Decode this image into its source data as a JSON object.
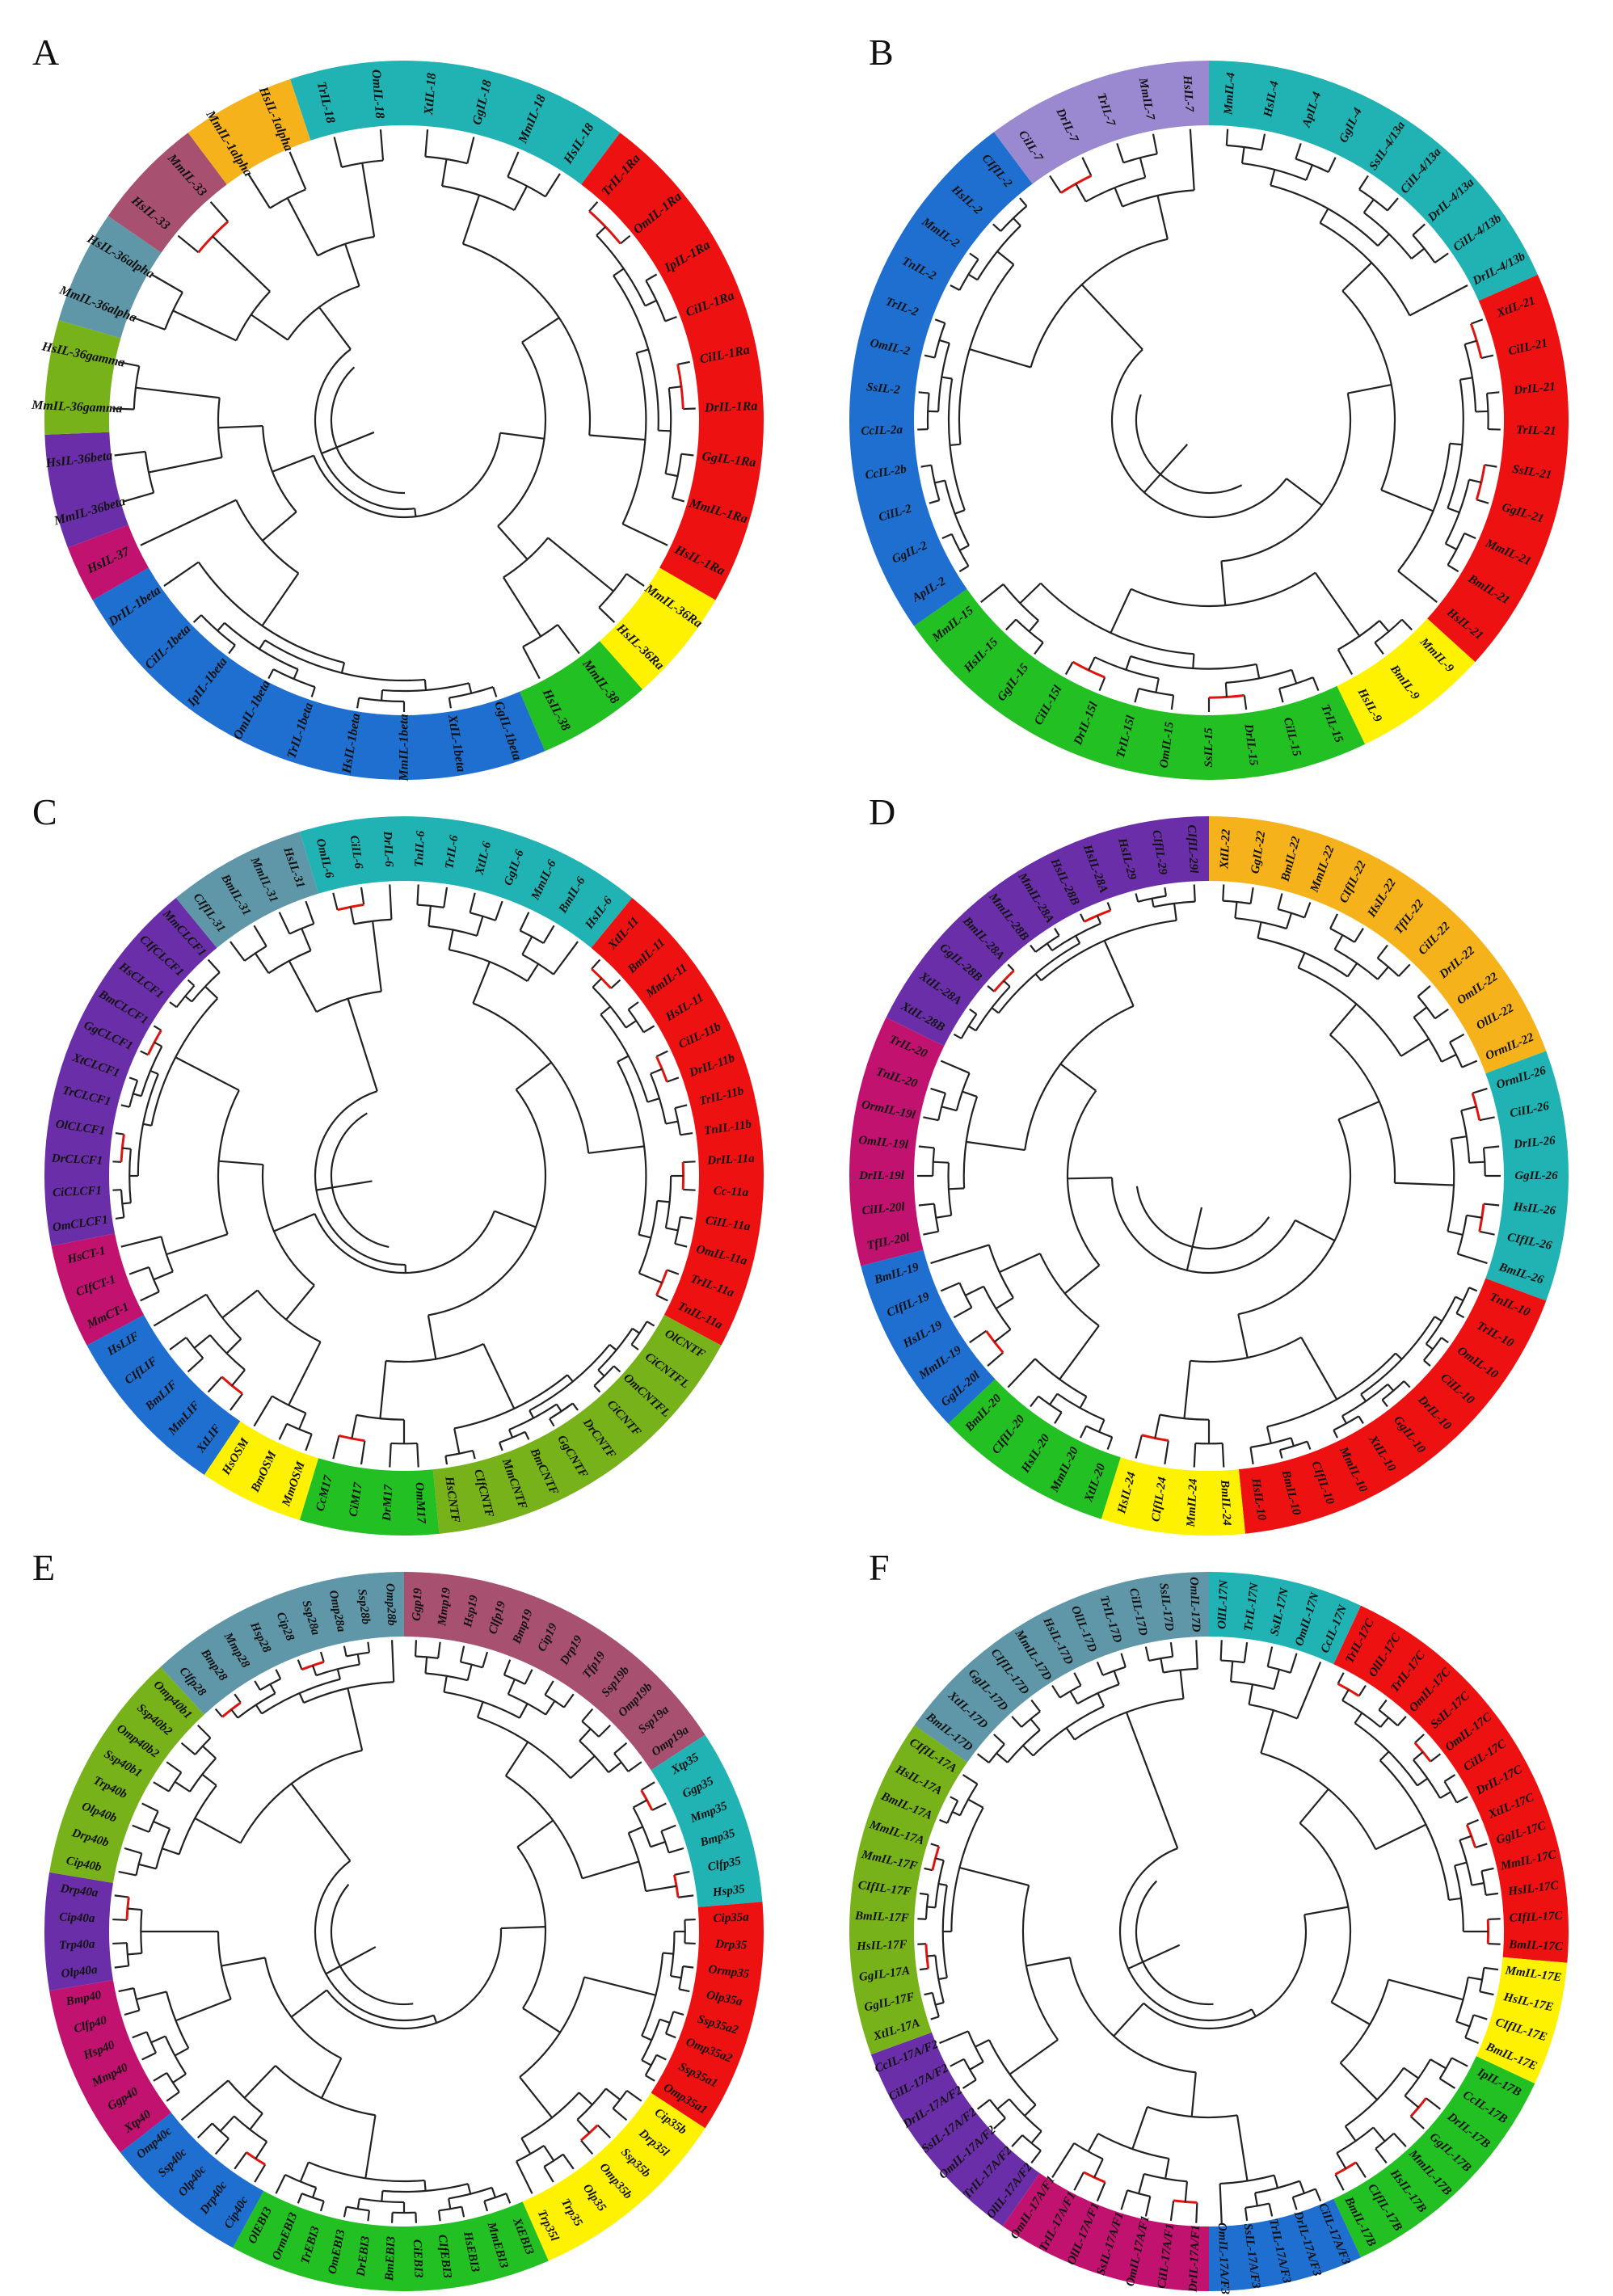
{
  "panels": [
    {
      "letter": "A",
      "groups": [
        {
          "color": "#21b3b3",
          "leaves": [
            "XtIL-18",
            "GgIL-18",
            "MmIL-18",
            "HsIL-18"
          ]
        },
        {
          "color": "#ee1111",
          "leaves": [
            "TrIL-1Ra",
            "OmIL-1Ra",
            "IpIL-1Ra",
            "CiIL-1Ra",
            "CiIL-1Ra",
            "DrIL-1Ra",
            "GgIL-1Ra",
            "MmIL-1Ra",
            "HsIL-1Ra"
          ]
        },
        {
          "color": "#fff200",
          "leaves": [
            "MmIL-36Ra",
            "HsIL-36Ra"
          ]
        },
        {
          "color": "#22c022",
          "leaves": [
            "MmIL-38",
            "HsIL-38"
          ]
        },
        {
          "color": "#1f6fd0",
          "leaves": [
            "GgIL-1beta",
            "XtIL-1beta",
            "MmIL-1beta",
            "HsIL-1beta",
            "TrIL-1beta",
            "OmIL-1beta",
            "IpIL-1beta",
            "CiIL-1beta",
            "DrIL-1beta"
          ]
        },
        {
          "color": "#c0126e",
          "leaves": [
            "HsIL-37"
          ]
        },
        {
          "color": "#6a2fa8",
          "leaves": [
            "MmIL-36beta",
            "HsIL-36beta"
          ]
        },
        {
          "color": "#78b21a",
          "leaves": [
            "MmIL-36gamma",
            "HsIL-36gamma"
          ]
        },
        {
          "color": "#5f97a8",
          "leaves": [
            "MmIL-36alpha",
            "HsIL-36alpha"
          ]
        },
        {
          "color": "#a8506f",
          "leaves": [
            "HsIL-33",
            "MmIL-33"
          ]
        },
        {
          "color": "#f5b21a",
          "leaves": [
            "MmIL-1alpha",
            "HsIL-1alpha"
          ]
        },
        {
          "color": "#21b3b3",
          "leaves": [
            "TrIL-18",
            "OmIL-18"
          ]
        }
      ]
    },
    {
      "letter": "B",
      "groups": [
        {
          "color": "#21b3b3",
          "leaves": [
            "MmIL-4",
            "HsIL-4",
            "ApIL-4",
            "GgIL-4",
            "SsIL-4/13a",
            "CiIL-4/13a",
            "DrIL-4/13a",
            "CiIL-4/13b",
            "DrIL-4/13b"
          ]
        },
        {
          "color": "#ee1111",
          "leaves": [
            "XtIL-21",
            "CiIL-21",
            "DrIL-21",
            "TrIL-21",
            "SsIL-21",
            "GgIL-21",
            "MmIL-21",
            "BmIL-21",
            "HsIL-21"
          ]
        },
        {
          "color": "#fff200",
          "leaves": [
            "MmIL-9",
            "BmIL-9",
            "HsIL-9"
          ]
        },
        {
          "color": "#22c022",
          "leaves": [
            "TrIL-15",
            "CiIL-15",
            "DrIL-15",
            "SsIL-15",
            "OmIL-15",
            "TrIL-15l",
            "DrIL-15l",
            "CiIL-15l",
            "GgIL-15",
            "HsIL-15",
            "MmIL-15"
          ]
        },
        {
          "color": "#1f6fd0",
          "leaves": [
            "ApIL-2",
            "GgIL-2",
            "CiIL-2",
            "CcIL-2b",
            "CcIL-2a",
            "SsIL-2",
            "OmIL-2",
            "TrIL-2",
            "TnIL-2",
            "MmIL-2",
            "HsIL-2",
            "CIfIL-2"
          ]
        },
        {
          "color": "#9a88d0",
          "leaves": [
            "CiIL-7",
            "DrIL-7",
            "TrIL-7",
            "MmIL-7",
            "HsIL-7"
          ]
        }
      ]
    },
    {
      "letter": "C",
      "groups": [
        {
          "color": "#21b3b3",
          "leaves": [
            "TnIL-6",
            "TrIL-6",
            "XtIL-6",
            "GgIL-6",
            "MmIL-6",
            "BmIL-6",
            "HsIL-6"
          ]
        },
        {
          "color": "#ee1111",
          "leaves": [
            "XtIL-11",
            "BmIL-11",
            "MmIL-11",
            "HsIL-11",
            "CiIL-11b",
            "DrIL-11b",
            "TrIL-11b",
            "TnIL-11b",
            "DrIL-11a",
            "Cc-11a",
            "CiIL-11a",
            "OmIL-11a",
            "TrIL-11a",
            "TnIL-11a"
          ]
        },
        {
          "color": "#78b21a",
          "leaves": [
            "OlCNTF",
            "CiCNTFL",
            "OmCNTFL",
            "CiCNTF",
            "DrCNTF",
            "GgCNTF",
            "BmCNTF",
            "MmCNTF",
            "CIfCNTF",
            "HsCNTF"
          ]
        },
        {
          "color": "#22c022",
          "leaves": [
            "OmM17",
            "DrM17",
            "CiM17",
            "CcM17"
          ]
        },
        {
          "color": "#fff200",
          "leaves": [
            "MmOSM",
            "BmOSM",
            "HsOSM"
          ]
        },
        {
          "color": "#1f6fd0",
          "leaves": [
            "XtLIF",
            "MmLIF",
            "BmLIF",
            "CIfLIF",
            "HsLIF"
          ]
        },
        {
          "color": "#c0126e",
          "leaves": [
            "MmCT-1",
            "CIfCT-1",
            "HsCT-1"
          ]
        },
        {
          "color": "#6a2fa8",
          "leaves": [
            "OmCLCF1",
            "CiCLCF1",
            "DrCLCF1",
            "OlCLCF1",
            "TrCLCF1",
            "XtCLCF1",
            "GgCLCF1",
            "BmCLCF1",
            "HsCLCF1",
            "CIfCLCF1",
            "MmCLCF1"
          ]
        },
        {
          "color": "#5f97a8",
          "leaves": [
            "CIfIL-31",
            "BmIL-31",
            "MmIL-31",
            "HsIL-31"
          ]
        },
        {
          "color": "#21b3b3",
          "leaves": [
            "OmIL-6",
            "CiIL-6",
            "DrIL-6"
          ]
        }
      ]
    },
    {
      "letter": "D",
      "groups": [
        {
          "color": "#f5b21a",
          "leaves": [
            "XtIL-22",
            "GgIL-22",
            "BmIL-22",
            "MmIL-22",
            "CIfIL-22",
            "HsIL-22",
            "TfIL-22",
            "CiIL-22",
            "DrIL-22",
            "OmIL-22",
            "OlIL-22",
            "OrmIL-22"
          ]
        },
        {
          "color": "#21b3b3",
          "leaves": [
            "OrmIL-26",
            "CiIL-26",
            "DrIL-26",
            "GgIL-26",
            "HsIL-26",
            "CIfIL-26",
            "BmIL-26"
          ]
        },
        {
          "color": "#ee1111",
          "leaves": [
            "TnIL-10",
            "TrIL-10",
            "OmIL-10",
            "CiIL-10",
            "DrIL-10",
            "GgIL-10",
            "XtIL-10",
            "MmIL-10",
            "CIfIL-10",
            "BmIL-10",
            "HsIL-10"
          ]
        },
        {
          "color": "#fff200",
          "leaves": [
            "BmIL-24",
            "MmIL-24",
            "CIfIL-24",
            "HsIL-24"
          ]
        },
        {
          "color": "#22c022",
          "leaves": [
            "XtIL-20",
            "MmIL-20",
            "HsIL-20",
            "CIfIL-20",
            "BmIL-20"
          ]
        },
        {
          "color": "#1f6fd0",
          "leaves": [
            "GgIL-20l",
            "MmIL-19",
            "HsIL-19",
            "CIfIL-19",
            "BmIL-19"
          ]
        },
        {
          "color": "#c0126e",
          "leaves": [
            "TfIL-20l",
            "CiIL-20l",
            "DrIL-19l",
            "OmIL-19l",
            "OrmIL-19l",
            "TnIL-20",
            "TrIL-20"
          ]
        },
        {
          "color": "#6a2fa8",
          "leaves": [
            "XtIL-28B",
            "XtIL-28A",
            "GgIL-28B",
            "BmIL-28A",
            "MmIL-28B",
            "MmIL-28A",
            "HsIL-28B",
            "HsIL-28A",
            "HsIL-29",
            "CIfIL-29",
            "CIfIL-29l"
          ]
        }
      ]
    },
    {
      "letter": "E",
      "groups": [
        {
          "color": "#a8506f",
          "leaves": [
            "Ggp19",
            "Mmp19",
            "Hsp19",
            "Clfp19",
            "Bmp19",
            "Cip19",
            "Drp19",
            "Tfp19",
            "Ssp19b",
            "Omp19b",
            "Ssp19a",
            "Omp19a"
          ]
        },
        {
          "color": "#21b3b3",
          "leaves": [
            "Xtp35",
            "Ggp35",
            "Mmp35",
            "Bmp35",
            "Clfp35",
            "Hsp35"
          ]
        },
        {
          "color": "#ee1111",
          "leaves": [
            "Cip35a",
            "Drp35",
            "Ormp35",
            "Olp35a",
            "Ssp35a2",
            "Omp35a2",
            "Ssp35a1",
            "Omp35a1"
          ]
        },
        {
          "color": "#fff200",
          "leaves": [
            "Cip35b",
            "Drp35l",
            "Ssp35b",
            "Omp35b",
            "Olp35",
            "Trp35",
            "Trp35l"
          ]
        },
        {
          "color": "#22c022",
          "leaves": [
            "XtEBI3",
            "MmEBI3",
            "HsEBI3",
            "CIfEBI3",
            "CiEBI3",
            "BmEBI3",
            "DrEBI3",
            "OmEBI3",
            "TrEBI3",
            "OrmEBI3",
            "OlEBI3"
          ]
        },
        {
          "color": "#1f6fd0",
          "leaves": [
            "Cip40c",
            "Drp40c",
            "Olp40c",
            "Ssp40c",
            "Omp40c"
          ]
        },
        {
          "color": "#c0126e",
          "leaves": [
            "Xtp40",
            "Ggp40",
            "Mmp40",
            "Hsp40",
            "Clfp40",
            "Bmp40"
          ]
        },
        {
          "color": "#6a2fa8",
          "leaves": [
            "Olp40a",
            "Trp40a",
            "Cip40a",
            "Drp40a"
          ]
        },
        {
          "color": "#78b21a",
          "leaves": [
            "Cip40b",
            "Drp40b",
            "Olp40b",
            "Trp40b",
            "Ssp40b1",
            "Omp40b2",
            "Ssp40b2",
            "Omp40b1"
          ]
        },
        {
          "color": "#5f97a8",
          "leaves": [
            "Clfp28",
            "Bmp28",
            "Mmp28",
            "Hsp28",
            "Cip28",
            "Ssp28a",
            "Omp28a",
            "Ssp28b",
            "Omp28b"
          ]
        }
      ]
    },
    {
      "letter": "F",
      "groups": [
        {
          "color": "#21b3b3",
          "leaves": [
            "OlIL-17N",
            "TrIL-17N",
            "SsIL-17N",
            "OmIL-17N",
            "CcIL-17N"
          ]
        },
        {
          "color": "#ee1111",
          "leaves": [
            "TrIL-17C",
            "OlIL-17C",
            "TrIL-17C",
            "OmIL-17C",
            "SsIL-17C",
            "OmIL-17C",
            "CiIL-17C",
            "DrIL-17C",
            "XtIL-17C",
            "GgIL-17C",
            "MmIL-17C",
            "HsIL-17C",
            "CIfIL-17C",
            "BmIL-17C"
          ]
        },
        {
          "color": "#fff200",
          "leaves": [
            "MmIL-17E",
            "HsIL-17E",
            "CIfIL-17E",
            "BmIL-17E"
          ]
        },
        {
          "color": "#22c022",
          "leaves": [
            "IpIL-17B",
            "CcIL-17B",
            "DrIL-17B",
            "GgIL-17B",
            "MmIL-17B",
            "HsIL-17B",
            "CIfIL-17B",
            "BmIL-17B"
          ]
        },
        {
          "color": "#1f6fd0",
          "leaves": [
            "CiIL-17A/F3",
            "DrIL-17A/F3",
            "TrIL-17A/F3",
            "SsIL-17A/F3",
            "OmIL-17A/F3"
          ]
        },
        {
          "color": "#c0126e",
          "leaves": [
            "DrIL-17A/F1",
            "CiIL-17A/F1",
            "OmIL-17A/F1",
            "SsIL-17A/F1",
            "OlIL-17A/F1",
            "TrIL-17A/F1",
            "OmIL-17A/F1"
          ]
        },
        {
          "color": "#6a2fa8",
          "leaves": [
            "OlIL-17A/F2",
            "TrIL-17A/F2",
            "OmIL-17A/F2",
            "SsIL-17A/F2",
            "DrIL-17A/F2",
            "CiIL-17A/F2",
            "CcIL-17A/F2"
          ]
        },
        {
          "color": "#78b21a",
          "leaves": [
            "XtIL-17A",
            "GgIL-17F",
            "GgIL-17A",
            "HsIL-17F",
            "BmIL-17F",
            "CIfIL-17F",
            "MmIL-17F",
            "MmIL-17A",
            "BmIL-17A",
            "HsIL-17A",
            "CIfIL-17A"
          ]
        },
        {
          "color": "#5f97a8",
          "leaves": [
            "BmIL-17D",
            "XtIL-17D",
            "GgIL-17D",
            "CIfIL-17D",
            "MmIL-17D",
            "HsIL-17D",
            "OlIL-17D",
            "TrIL-17D",
            "CiIL-17D",
            "SsIL-17D",
            "OmIL-17D"
          ]
        }
      ]
    }
  ]
}
